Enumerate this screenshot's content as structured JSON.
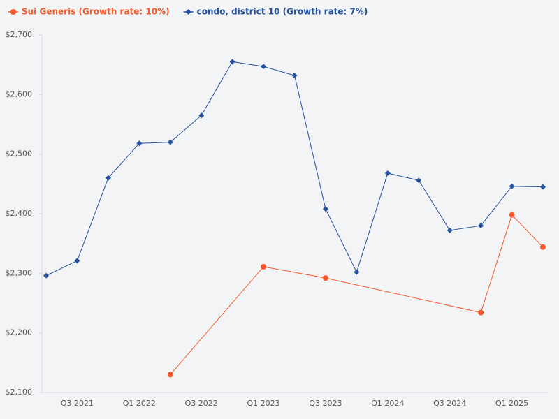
{
  "chart_data": {
    "type": "line",
    "categories": [
      null,
      "Q3 2021",
      null,
      "Q1 2022",
      null,
      "Q3 2022",
      null,
      "Q1 2023",
      null,
      "Q3 2023",
      null,
      "Q1 2024",
      null,
      "Q3 2024",
      null,
      "Q1 2025",
      null
    ],
    "series": [
      {
        "name": "Sui Generis (Growth rate: 10%)",
        "color": "#f4592b",
        "marker": "circle",
        "values": [
          null,
          null,
          null,
          null,
          2130,
          null,
          null,
          2311,
          null,
          2292,
          null,
          null,
          null,
          null,
          2234,
          2398,
          2344
        ]
      },
      {
        "name": "condo, district 10 (Growth rate: 7%)",
        "color": "#24509e",
        "marker": "diamond",
        "values": [
          2296,
          2321,
          2460,
          2518,
          2520,
          2565,
          2655,
          2647,
          2632,
          2408,
          2302,
          2468,
          2456,
          2372,
          2380,
          2446,
          2445
        ]
      }
    ],
    "span_gaps": true,
    "ylim": [
      2100,
      2700
    ],
    "yticks": [
      {
        "value": 2100,
        "label": "$2,100"
      },
      {
        "value": 2200,
        "label": "$2,200"
      },
      {
        "value": 2300,
        "label": "$2,300"
      },
      {
        "value": 2400,
        "label": "$2,400"
      },
      {
        "value": 2500,
        "label": "$2,500"
      },
      {
        "value": 2600,
        "label": "$2,600"
      },
      {
        "value": 2700,
        "label": "$2,700"
      }
    ],
    "grid": false,
    "legend": "top-left"
  }
}
